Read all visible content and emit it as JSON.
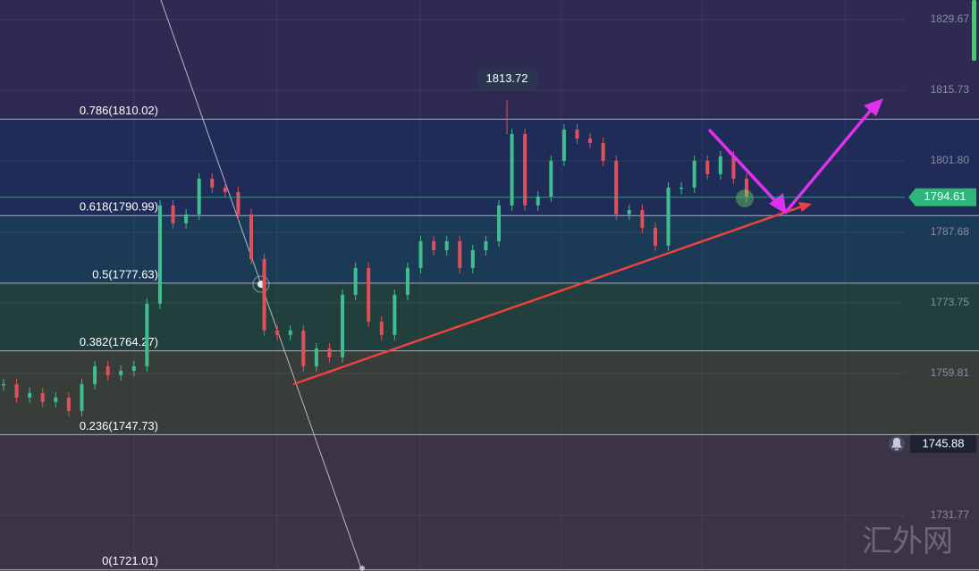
{
  "chart_data": {
    "type": "candlestick",
    "ylim": [
      1720.8,
      1833.55
    ],
    "yticks": [
      1829.67,
      1815.73,
      {
        "value": 1801.8,
        "label": "1801.80"
      },
      1787.68,
      1773.75,
      1759.81,
      1731.77
    ],
    "values": [
      1757.7,
      1755.05,
      1755.94,
      1754.17,
      1755.05,
      1752.41,
      1757.7,
      1761.23,
      1759.46,
      1760.35,
      1761.23,
      1773.58,
      1792.98,
      1789.45,
      1791.22,
      1798.27,
      1796.51,
      1795.63,
      1791.22,
      1782.4,
      1768.28,
      1767.4,
      1768.28,
      1761.23,
      1764.76,
      1762.99,
      1775.34,
      1780.63,
      1770.05,
      1767.4,
      1775.34,
      1780.63,
      1785.92,
      1784.16,
      1785.92,
      1780.63,
      1784.16,
      1785.92,
      1792.98,
      1807.09,
      1792.98,
      1794.74,
      1801.8,
      1807.97,
      1806.21,
      1805.33,
      1801.8,
      1791.22,
      1792.1,
      1788.57,
      1785.04,
      1796.51,
      1796.51,
      1801.8,
      1799.15,
      1802.68,
      1798.27,
      1794.74
    ],
    "up_color": "#3fbf8f",
    "down_color": "#e0505a",
    "top_color": "#2e2a52",
    "fib_levels": [
      {
        "label": "0.786(1810.02)",
        "value": 1810.02,
        "color": "#1f2c57"
      },
      {
        "label": "0.618(1790.99)",
        "value": 1790.99,
        "color": "#1b3a55"
      },
      {
        "label": "0.5(1777.63)",
        "value": 1777.63,
        "color": "#213f3c"
      },
      {
        "label": "0.382(1764.27)",
        "value": 1764.27,
        "color": "#373d38"
      },
      {
        "label": "0.236(1747.73)",
        "value": 1747.73,
        "color": "#3a3446"
      },
      {
        "label": "0(1721.01)",
        "value": 1721.01,
        "color": "#3a3446"
      }
    ],
    "peak_label": 1813.72,
    "last_price": 1794.61,
    "alert_price": 1745.88
  },
  "watermark": "汇外网"
}
